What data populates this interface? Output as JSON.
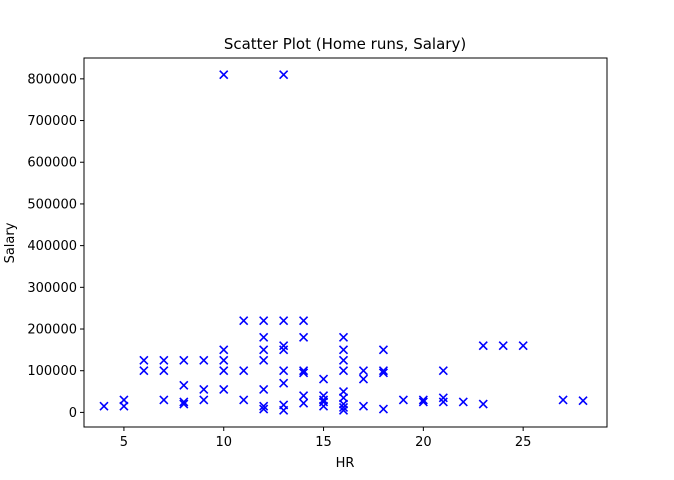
{
  "chart_data": {
    "type": "scatter",
    "title": "Scatter Plot (Home runs, Salary)",
    "xlabel": "HR",
    "ylabel": "Salary",
    "xlim": [
      3,
      29.2
    ],
    "ylim": [
      -35000,
      850000
    ],
    "xticks": [
      5,
      10,
      15,
      20,
      25
    ],
    "yticks": [
      0,
      100000,
      200000,
      300000,
      400000,
      500000,
      600000,
      700000,
      800000
    ],
    "marker": "x",
    "marker_color": "#0000ff",
    "grid": false,
    "points": [
      {
        "x": 4,
        "y": 15000
      },
      {
        "x": 5,
        "y": 30000
      },
      {
        "x": 5,
        "y": 15000
      },
      {
        "x": 6,
        "y": 125000
      },
      {
        "x": 6,
        "y": 100000
      },
      {
        "x": 7,
        "y": 125000
      },
      {
        "x": 7,
        "y": 100000
      },
      {
        "x": 7,
        "y": 30000
      },
      {
        "x": 8,
        "y": 125000
      },
      {
        "x": 8,
        "y": 65000
      },
      {
        "x": 8,
        "y": 25000
      },
      {
        "x": 8,
        "y": 20000
      },
      {
        "x": 9,
        "y": 125000
      },
      {
        "x": 9,
        "y": 55000
      },
      {
        "x": 9,
        "y": 30000
      },
      {
        "x": 10,
        "y": 810000
      },
      {
        "x": 10,
        "y": 150000
      },
      {
        "x": 10,
        "y": 125000
      },
      {
        "x": 10,
        "y": 100000
      },
      {
        "x": 10,
        "y": 55000
      },
      {
        "x": 11,
        "y": 220000
      },
      {
        "x": 11,
        "y": 100000
      },
      {
        "x": 11,
        "y": 30000
      },
      {
        "x": 12,
        "y": 220000
      },
      {
        "x": 12,
        "y": 180000
      },
      {
        "x": 12,
        "y": 150000
      },
      {
        "x": 12,
        "y": 125000
      },
      {
        "x": 12,
        "y": 55000
      },
      {
        "x": 12,
        "y": 15000
      },
      {
        "x": 12,
        "y": 8000
      },
      {
        "x": 13,
        "y": 810000
      },
      {
        "x": 13,
        "y": 220000
      },
      {
        "x": 13,
        "y": 160000
      },
      {
        "x": 13,
        "y": 150000
      },
      {
        "x": 13,
        "y": 100000
      },
      {
        "x": 13,
        "y": 70000
      },
      {
        "x": 13,
        "y": 18000
      },
      {
        "x": 13,
        "y": 5000
      },
      {
        "x": 14,
        "y": 220000
      },
      {
        "x": 14,
        "y": 180000
      },
      {
        "x": 14,
        "y": 100000
      },
      {
        "x": 14,
        "y": 95000
      },
      {
        "x": 14,
        "y": 40000
      },
      {
        "x": 14,
        "y": 22000
      },
      {
        "x": 15,
        "y": 80000
      },
      {
        "x": 15,
        "y": 40000
      },
      {
        "x": 15,
        "y": 30000
      },
      {
        "x": 15,
        "y": 25000
      },
      {
        "x": 15,
        "y": 15000
      },
      {
        "x": 16,
        "y": 180000
      },
      {
        "x": 16,
        "y": 150000
      },
      {
        "x": 16,
        "y": 125000
      },
      {
        "x": 16,
        "y": 100000
      },
      {
        "x": 16,
        "y": 50000
      },
      {
        "x": 16,
        "y": 35000
      },
      {
        "x": 16,
        "y": 20000
      },
      {
        "x": 16,
        "y": 12000
      },
      {
        "x": 16,
        "y": 5000
      },
      {
        "x": 17,
        "y": 100000
      },
      {
        "x": 17,
        "y": 80000
      },
      {
        "x": 17,
        "y": 15000
      },
      {
        "x": 18,
        "y": 150000
      },
      {
        "x": 18,
        "y": 100000
      },
      {
        "x": 18,
        "y": 95000
      },
      {
        "x": 18,
        "y": 8000
      },
      {
        "x": 19,
        "y": 30000
      },
      {
        "x": 20,
        "y": 30000
      },
      {
        "x": 20,
        "y": 25000
      },
      {
        "x": 21,
        "y": 100000
      },
      {
        "x": 21,
        "y": 35000
      },
      {
        "x": 21,
        "y": 25000
      },
      {
        "x": 22,
        "y": 25000
      },
      {
        "x": 23,
        "y": 160000
      },
      {
        "x": 23,
        "y": 20000
      },
      {
        "x": 24,
        "y": 160000
      },
      {
        "x": 25,
        "y": 160000
      },
      {
        "x": 27,
        "y": 30000
      },
      {
        "x": 28,
        "y": 28000
      }
    ]
  }
}
